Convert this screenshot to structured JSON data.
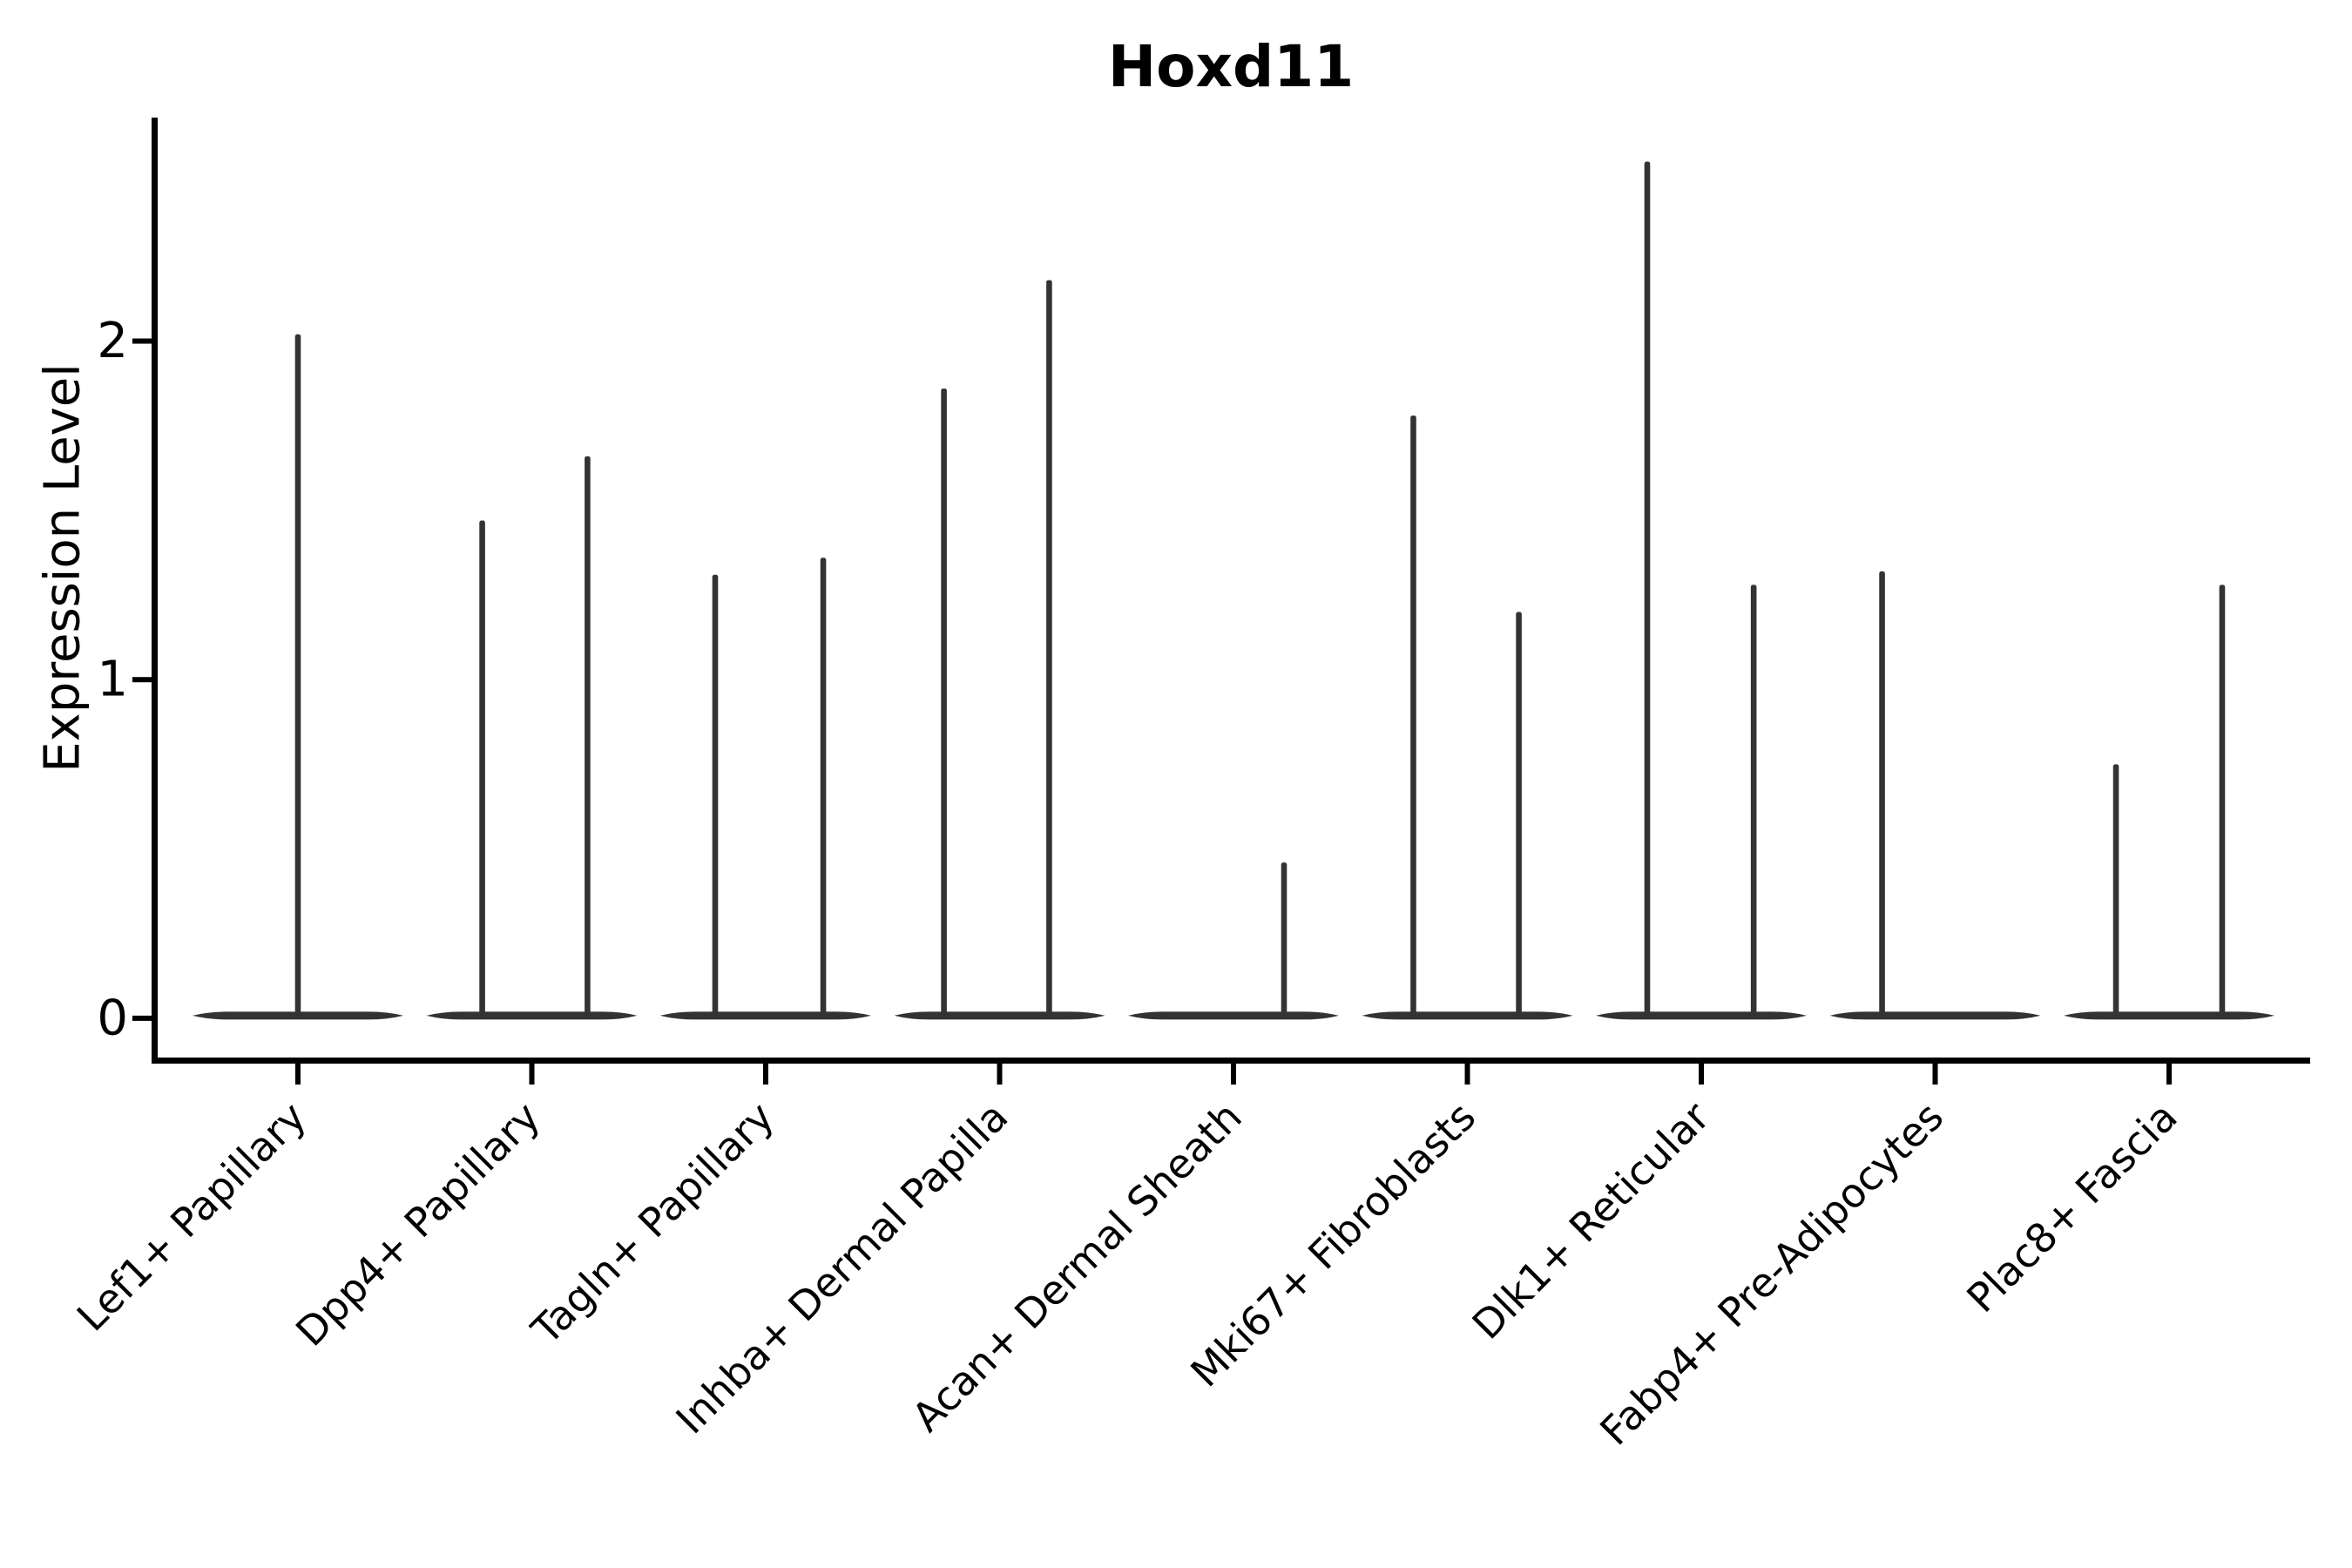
{
  "title": "Hoxd11",
  "chart_data": {
    "type": "violin",
    "title": "Hoxd11",
    "xlabel": "",
    "ylabel": "Expression Level",
    "yticks": [
      0,
      1,
      2
    ],
    "ylim": [
      -0.116,
      2.66
    ],
    "grid": false,
    "legend": "none",
    "background": "#ffffff",
    "colors": {
      "violin": "#333333",
      "spike": "#333333",
      "axis": "#000000",
      "text": "#000000"
    },
    "description": "Single-cell violin plot of Hoxd11 expression; each cluster shows a flattened violin at 0 with thin spikes for the few expressing cells.",
    "categories": [
      "Lef1+ Papillary",
      "Dpp4+ Papillary",
      "Tagln+ Papillary",
      "Inhba+ Dermal Papilla",
      "Acan+ Dermal Sheath",
      "Mki67+ Fibroblasts",
      "Dlk1+ Reticular",
      "Fabp4+ Pre-Adipocytes",
      "Plac8+ Fascia"
    ],
    "series": [
      {
        "category": "Lef1+ Papillary",
        "baseline_value": 0,
        "spikes": [
          {
            "dx": 0.0,
            "value": 2.02
          }
        ]
      },
      {
        "category": "Dpp4+ Papillary",
        "baseline_value": 0,
        "spikes": [
          {
            "dx": -0.212,
            "value": 1.47
          },
          {
            "dx": 0.238,
            "value": 1.66
          }
        ]
      },
      {
        "category": "Tagln+ Papillary",
        "baseline_value": 0,
        "spikes": [
          {
            "dx": -0.216,
            "value": 1.31
          },
          {
            "dx": 0.246,
            "value": 1.36
          }
        ]
      },
      {
        "category": "Inhba+ Dermal Papilla",
        "baseline_value": 0,
        "spikes": [
          {
            "dx": -0.238,
            "value": 1.86
          },
          {
            "dx": 0.212,
            "value": 2.18
          }
        ]
      },
      {
        "category": "Acan+ Dermal Sheath",
        "baseline_value": 0,
        "spikes": [
          {
            "dx": 0.216,
            "value": 0.46
          }
        ]
      },
      {
        "category": "Mki67+ Fibroblasts",
        "baseline_value": 0,
        "spikes": [
          {
            "dx": -0.231,
            "value": 1.78
          },
          {
            "dx": 0.22,
            "value": 1.2
          }
        ]
      },
      {
        "category": "Dlk1+ Reticular",
        "baseline_value": 0,
        "spikes": [
          {
            "dx": -0.231,
            "value": 2.53
          },
          {
            "dx": 0.224,
            "value": 1.28
          }
        ]
      },
      {
        "category": "Fabp4+ Pre-Adipocytes",
        "baseline_value": 0,
        "spikes": [
          {
            "dx": -0.227,
            "value": 1.32
          }
        ]
      },
      {
        "category": "Plac8+ Fascia",
        "baseline_value": 0,
        "spikes": [
          {
            "dx": -0.227,
            "value": 0.75
          },
          {
            "dx": 0.227,
            "value": 1.28
          }
        ]
      }
    ]
  }
}
